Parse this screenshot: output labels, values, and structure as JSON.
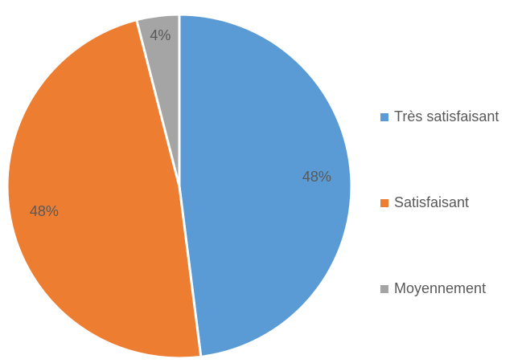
{
  "chart_data": {
    "type": "pie",
    "categories": [
      "Très satisfaisant",
      "Satisfaisant",
      "Moyennement"
    ],
    "values": [
      48,
      48,
      4
    ],
    "value_labels": [
      "48%",
      "48%",
      "4%"
    ],
    "colors": [
      "#5b9bd5",
      "#ed7d31",
      "#a5a5a5"
    ],
    "legend": "right"
  }
}
